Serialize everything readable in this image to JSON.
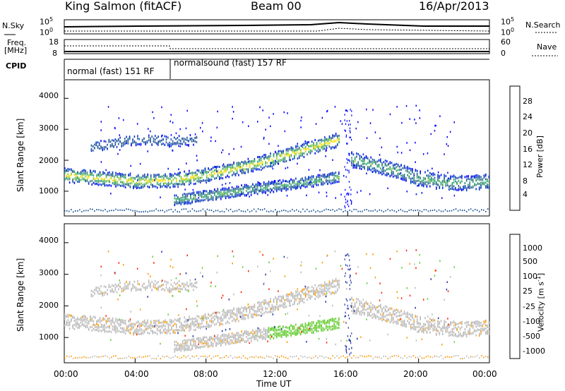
{
  "header": {
    "title": "King Salmon (fitACF)",
    "beam": "Beam 00",
    "date": "16/Apr/2013"
  },
  "strip": {
    "nsky_label": "N.Sky",
    "nsearch_label": "N.Search",
    "noise_tick_top": "10^5",
    "noise_tick_bottom": "10^0",
    "noise_tick_top_r": "10^5",
    "noise_tick_bottom_r": "10^0",
    "freq_label": "Freq.",
    "freq_unit": "[MHz]",
    "freq_tick_top": "18",
    "freq_tick_bottom": "8",
    "nave_label": "Nave",
    "nave_tick_top": "60",
    "nave_tick_bottom": "0",
    "cpid_label": "CPID",
    "cpid_1": "normal (fast) 151 RF",
    "cpid_2": "normalsound (fast) 157 RF"
  },
  "chart_data": [
    {
      "type": "heatmap",
      "name": "power",
      "ylabel": "Slant Range [km]",
      "y_ticks": [
        "4000",
        "3000",
        "2000",
        "1000"
      ],
      "ylim": [
        200,
        4600
      ],
      "colorbar_label": "Power [dB]",
      "colorbar_ticks": [
        "28",
        "24",
        "20",
        "16",
        "12",
        "8",
        "4"
      ],
      "colorbar_colors": [
        "#ff0000",
        "#ff5500",
        "#ffaa00",
        "#ffdd00",
        "#99cc33",
        "#33aa66",
        "#338877",
        "#225599",
        "#0033cc",
        "#0000ff"
      ],
      "echo_bands": [
        {
          "t": [
            0,
            2,
            4,
            6,
            8,
            10,
            12,
            14,
            15.5
          ],
          "r": [
            1550,
            1450,
            1350,
            1380,
            1550,
            1800,
            2100,
            2450,
            2700
          ],
          "w": 280
        },
        {
          "t": [
            6.2,
            8,
            10,
            12,
            14,
            15.5
          ],
          "r": [
            750,
            880,
            1050,
            1200,
            1350,
            1500
          ],
          "w": 220
        },
        {
          "t": [
            16.2,
            17,
            18,
            19,
            20,
            21,
            22,
            23,
            24
          ],
          "r": [
            2050,
            1950,
            1800,
            1650,
            1450,
            1350,
            1300,
            1300,
            1350
          ],
          "w": 300
        },
        {
          "t": [
            1.5,
            3,
            4.5,
            6,
            7.5
          ],
          "r": [
            2450,
            2600,
            2700,
            2650,
            2700
          ],
          "w": 200
        }
      ]
    },
    {
      "type": "heatmap",
      "name": "velocity",
      "xlabel": "Time UT",
      "x_ticks": [
        "00:00",
        "04:00",
        "08:00",
        "12:00",
        "16:00",
        "20:00",
        "00:00"
      ],
      "xlim": [
        0,
        24
      ],
      "ylabel": "Slant Range [km]",
      "y_ticks": [
        "4000",
        "3000",
        "2000",
        "1000"
      ],
      "ylim": [
        200,
        4600
      ],
      "colorbar_label": "Velocity [m s^-1]",
      "colorbar_ticks": [
        "1000",
        "500",
        "100",
        "25",
        "-25",
        "-100",
        "-500",
        "-1000"
      ],
      "colorbar_colors": [
        "#2233aa",
        "#3366cc",
        "#338855",
        "#66cc33",
        "#bbbbbb",
        "#bbbbbb",
        "#ff9900",
        "#ff6600",
        "#ff2200",
        "#ff0000"
      ]
    }
  ]
}
